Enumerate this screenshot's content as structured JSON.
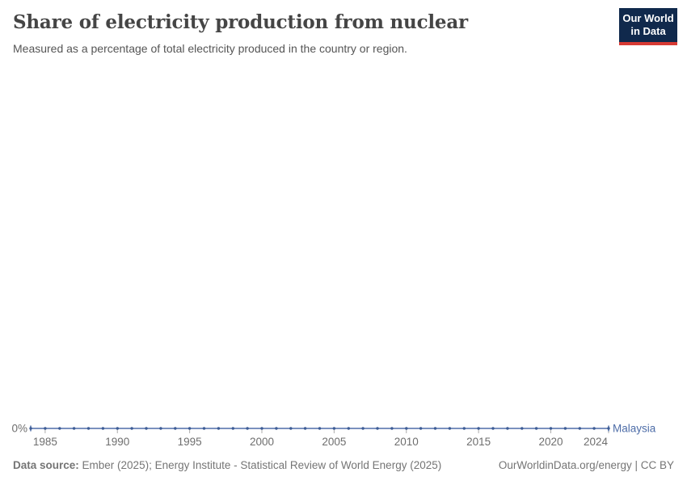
{
  "header": {
    "title": "Share of electricity production from nuclear",
    "subtitle": "Measured as a percentage of total electricity produced in the country or region.",
    "logo": {
      "line1": "Our World",
      "line2": "in Data"
    }
  },
  "chart_data": {
    "type": "line",
    "title": "Share of electricity production from nuclear",
    "xlabel": "",
    "ylabel": "",
    "xlim": [
      1984,
      2024
    ],
    "ylim": [
      0,
      100
    ],
    "grid": false,
    "legend_position": "end-of-line",
    "x_ticks": [
      1985,
      1990,
      1995,
      2000,
      2005,
      2010,
      2015,
      2020,
      2024
    ],
    "y_tick_labels": [
      "0%"
    ],
    "series": [
      {
        "name": "Malaysia",
        "color": "#4e6da8",
        "dot_color": "#3d5c95",
        "x": [
          1984,
          1985,
          1986,
          1987,
          1988,
          1989,
          1990,
          1991,
          1992,
          1993,
          1994,
          1995,
          1996,
          1997,
          1998,
          1999,
          2000,
          2001,
          2002,
          2003,
          2004,
          2005,
          2006,
          2007,
          2008,
          2009,
          2010,
          2011,
          2012,
          2013,
          2014,
          2015,
          2016,
          2017,
          2018,
          2019,
          2020,
          2021,
          2022,
          2023,
          2024
        ],
        "values": [
          0,
          0,
          0,
          0,
          0,
          0,
          0,
          0,
          0,
          0,
          0,
          0,
          0,
          0,
          0,
          0,
          0,
          0,
          0,
          0,
          0,
          0,
          0,
          0,
          0,
          0,
          0,
          0,
          0,
          0,
          0,
          0,
          0,
          0,
          0,
          0,
          0,
          0,
          0,
          0,
          0
        ]
      }
    ]
  },
  "colors": {
    "axis_text": "#6e6e6e",
    "tick_mark": "#adadad",
    "logo_navy": "#10294c",
    "logo_red": "#d73a34",
    "accent_line": "#4e6da8"
  },
  "footer": {
    "data_source_label": "Data source:",
    "data_source_text": " Ember (2025); Energy Institute - Statistical Review of World Energy (2025)",
    "attribution": "OurWorldinData.org/energy | CC BY"
  }
}
